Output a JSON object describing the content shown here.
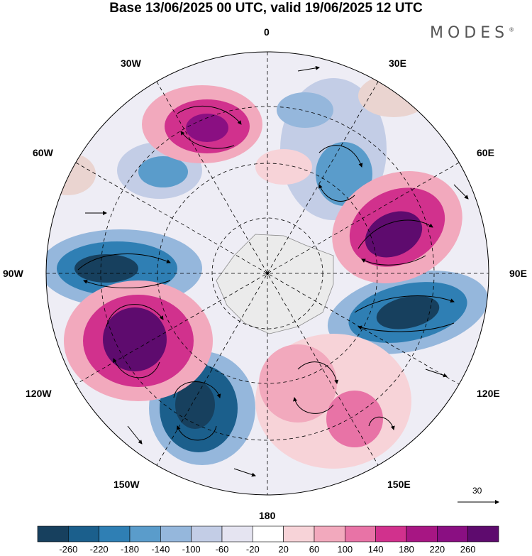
{
  "title": "Base 13/06/2025 00 UTC, valid 19/06/2025 12 UTC",
  "logo": "MODES",
  "logo_mark": "®",
  "longitude_labels": {
    "n0": "0",
    "e30": "30E",
    "e60": "60E",
    "e90": "90E",
    "e120": "120E",
    "e150": "150E",
    "s180": "180",
    "w150": "150W",
    "w120": "120W",
    "w90": "90W",
    "w60": "60W",
    "w30": "30W"
  },
  "wind_reference": {
    "value": "30"
  },
  "colorbar": {
    "ticks": [
      "-260",
      "-220",
      "-180",
      "-140",
      "-100",
      "-60",
      "-20",
      "20",
      "60",
      "100",
      "140",
      "180",
      "220",
      "260"
    ],
    "colors": [
      "#17405e",
      "#1b5f8c",
      "#2f7fb4",
      "#5a9ccb",
      "#95b7dc",
      "#c3cde6",
      "#e5e4f1",
      "#ffffff",
      "#f7d3d8",
      "#f2a9bd",
      "#e873a6",
      "#d1318d",
      "#a71683",
      "#8a0f82",
      "#5e0b6e"
    ]
  },
  "anomaly_centers": [
    {
      "name": "low-90W",
      "sign": "negative",
      "magnitude": 260
    },
    {
      "name": "high-30W",
      "sign": "positive",
      "magnitude": 220
    },
    {
      "name": "low-60W",
      "sign": "negative",
      "magnitude": 140
    },
    {
      "name": "high-110W",
      "sign": "positive",
      "magnitude": 260
    },
    {
      "name": "low-150W",
      "sign": "negative",
      "magnitude": 260
    },
    {
      "name": "high-70E",
      "sign": "positive",
      "magnitude": 260
    },
    {
      "name": "low-105E",
      "sign": "negative",
      "magnitude": 260
    },
    {
      "name": "low-30E",
      "sign": "negative",
      "magnitude": 140
    },
    {
      "name": "high-150E",
      "sign": "positive",
      "magnitude": 180
    }
  ]
}
